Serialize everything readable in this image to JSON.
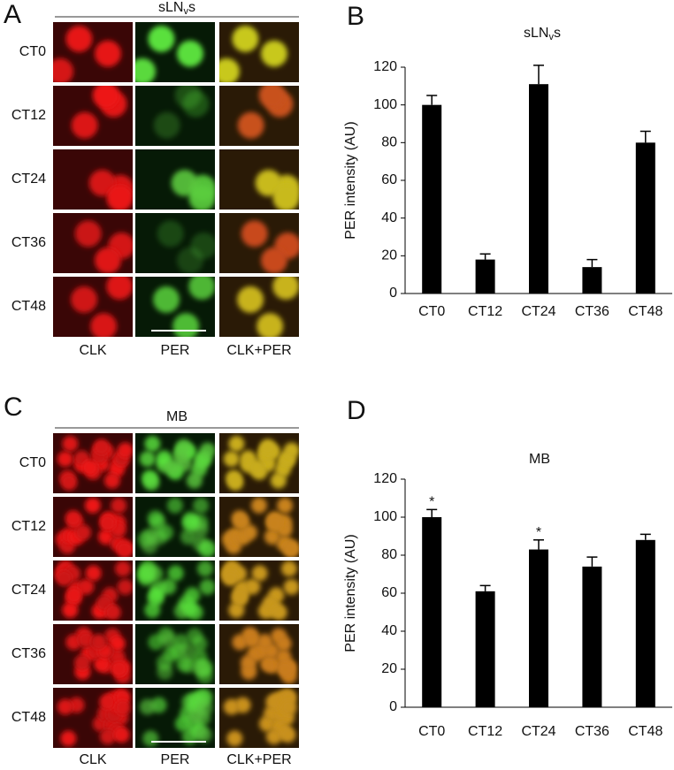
{
  "panel_labels": [
    "A",
    "B",
    "C",
    "D"
  ],
  "image_panels": [
    {
      "title_parts": [
        "sLN",
        "v",
        "s"
      ],
      "rows": [
        "CT0",
        "CT12",
        "CT24",
        "CT36",
        "CT48"
      ],
      "columns": [
        "CLK",
        "PER",
        "CLK+PER"
      ]
    },
    {
      "title": "MB",
      "rows": [
        "CT0",
        "CT12",
        "CT24",
        "CT36",
        "CT48"
      ],
      "columns": [
        "CLK",
        "PER",
        "CLK+PER"
      ]
    }
  ],
  "chart_data": [
    {
      "type": "bar",
      "title_parts": [
        "sLN",
        "v",
        "s"
      ],
      "ylabel": "PER intensity (AU)",
      "categories": [
        "CT0",
        "CT12",
        "CT24",
        "CT36",
        "CT48"
      ],
      "values": [
        100,
        18,
        111,
        14,
        80
      ],
      "errors": [
        5,
        3,
        10,
        4,
        6
      ],
      "color": "#000000",
      "ylim": [
        0,
        120
      ],
      "yticks": [
        0,
        20,
        40,
        60,
        80,
        100,
        120
      ]
    },
    {
      "type": "bar",
      "title": "MB",
      "ylabel": "PER intensity (AU)",
      "categories": [
        "CT0",
        "CT12",
        "CT24",
        "CT36",
        "CT48"
      ],
      "values": [
        100,
        61,
        83,
        74,
        88
      ],
      "errors": [
        4,
        3,
        5,
        5,
        3
      ],
      "color": "#000000",
      "ylim": [
        0,
        120
      ],
      "yticks": [
        0,
        20,
        40,
        60,
        80,
        100,
        120
      ],
      "annotations": [
        {
          "x": "CT0",
          "text": "*"
        },
        {
          "x": "CT24",
          "text": "*"
        }
      ]
    }
  ]
}
